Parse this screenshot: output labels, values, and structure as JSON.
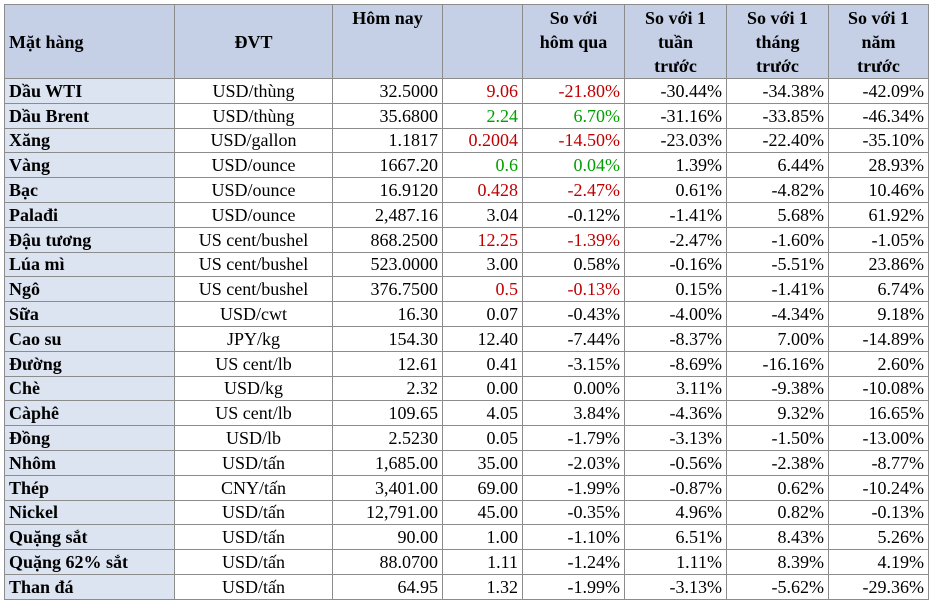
{
  "headers": {
    "item": "Mặt hàng",
    "unit": "ĐVT",
    "today": "Hôm nay",
    "change": "",
    "vs_yesterday": [
      "So với",
      "hôm qua"
    ],
    "vs_week": [
      "So với 1",
      "tuần",
      "trước"
    ],
    "vs_month": [
      "So với 1",
      "tháng",
      "trước"
    ],
    "vs_year": [
      "So với 1",
      "năm",
      "trước"
    ]
  },
  "colors": {
    "header_bg": "#c5d0e6",
    "name_bg": "#dde4f1",
    "red": "#c00000",
    "green": "#00a000"
  },
  "rows": [
    {
      "name": "Dầu WTI",
      "unit": "USD/thùng",
      "today": "32.5000",
      "change": "9.06",
      "day": "-21.80%",
      "week": "-30.44%",
      "month": "-34.38%",
      "year": "-42.09%",
      "change_color": "red",
      "day_color": "red"
    },
    {
      "name": "Dầu Brent",
      "unit": "USD/thùng",
      "today": "35.6800",
      "change": "2.24",
      "day": "6.70%",
      "week": "-31.16%",
      "month": "-33.85%",
      "year": "-46.34%",
      "change_color": "green",
      "day_color": "green"
    },
    {
      "name": "Xăng",
      "unit": "USD/gallon",
      "today": "1.1817",
      "change": "0.2004",
      "day": "-14.50%",
      "week": "-23.03%",
      "month": "-22.40%",
      "year": "-35.10%",
      "change_color": "red",
      "day_color": "red"
    },
    {
      "name": "Vàng",
      "unit": "USD/ounce",
      "today": "1667.20",
      "change": "0.6",
      "day": "0.04%",
      "week": "1.39%",
      "month": "6.44%",
      "year": "28.93%",
      "change_color": "green",
      "day_color": "green"
    },
    {
      "name": "Bạc",
      "unit": "USD/ounce",
      "today": "16.9120",
      "change": "0.428",
      "day": "-2.47%",
      "week": "0.61%",
      "month": "-4.82%",
      "year": "10.46%",
      "change_color": "red",
      "day_color": "red"
    },
    {
      "name": "Palađi",
      "unit": "USD/ounce",
      "today": "2,487.16",
      "change": "3.04",
      "day": "-0.12%",
      "week": "-1.41%",
      "month": "5.68%",
      "year": "61.92%",
      "change_color": "",
      "day_color": ""
    },
    {
      "name": "Đậu tương",
      "unit": "US cent/bushel",
      "today": "868.2500",
      "change": "12.25",
      "day": "-1.39%",
      "week": "-2.47%",
      "month": "-1.60%",
      "year": "-1.05%",
      "change_color": "red",
      "day_color": "red"
    },
    {
      "name": "Lúa mì",
      "unit": "US cent/bushel",
      "today": "523.0000",
      "change": "3.00",
      "day": "0.58%",
      "week": "-0.16%",
      "month": "-5.51%",
      "year": "23.86%",
      "change_color": "",
      "day_color": ""
    },
    {
      "name": "Ngô",
      "unit": "US cent/bushel",
      "today": "376.7500",
      "change": "0.5",
      "day": "-0.13%",
      "week": "0.15%",
      "month": "-1.41%",
      "year": "6.74%",
      "change_color": "red",
      "day_color": "red"
    },
    {
      "name": "Sữa",
      "unit": "USD/cwt",
      "today": "16.30",
      "change": "0.07",
      "day": "-0.43%",
      "week": "-4.00%",
      "month": "-4.34%",
      "year": "9.18%",
      "change_color": "",
      "day_color": ""
    },
    {
      "name": "Cao su",
      "unit": "JPY/kg",
      "today": "154.30",
      "change": "12.40",
      "day": "-7.44%",
      "week": "-8.37%",
      "month": "7.00%",
      "year": "-14.89%",
      "change_color": "",
      "day_color": ""
    },
    {
      "name": "Đường",
      "unit": "US cent/lb",
      "today": "12.61",
      "change": "0.41",
      "day": "-3.15%",
      "week": "-8.69%",
      "month": "-16.16%",
      "year": "2.60%",
      "change_color": "",
      "day_color": ""
    },
    {
      "name": "Chè",
      "unit": "USD/kg",
      "today": "2.32",
      "change": "0.00",
      "day": "0.00%",
      "week": "3.11%",
      "month": "-9.38%",
      "year": "-10.08%",
      "change_color": "",
      "day_color": ""
    },
    {
      "name": "Càphê",
      "unit": "US cent/lb",
      "today": "109.65",
      "change": "4.05",
      "day": "3.84%",
      "week": "-4.36%",
      "month": "9.32%",
      "year": "16.65%",
      "change_color": "",
      "day_color": ""
    },
    {
      "name": "Đồng",
      "unit": "USD/lb",
      "today": "2.5230",
      "change": "0.05",
      "day": "-1.79%",
      "week": "-3.13%",
      "month": "-1.50%",
      "year": "-13.00%",
      "change_color": "",
      "day_color": ""
    },
    {
      "name": "Nhôm",
      "unit": "USD/tấn",
      "today": "1,685.00",
      "change": "35.00",
      "day": "-2.03%",
      "week": "-0.56%",
      "month": "-2.38%",
      "year": "-8.77%",
      "change_color": "",
      "day_color": ""
    },
    {
      "name": "Thép",
      "unit": "CNY/tấn",
      "today": "3,401.00",
      "change": "69.00",
      "day": "-1.99%",
      "week": "-0.87%",
      "month": "0.62%",
      "year": "-10.24%",
      "change_color": "",
      "day_color": ""
    },
    {
      "name": "Nickel",
      "unit": "USD/tấn",
      "today": "12,791.00",
      "change": "45.00",
      "day": "-0.35%",
      "week": "4.96%",
      "month": "0.82%",
      "year": "-0.13%",
      "change_color": "",
      "day_color": ""
    },
    {
      "name": "Quặng sắt",
      "unit": "USD/tấn",
      "today": "90.00",
      "change": "1.00",
      "day": "-1.10%",
      "week": "6.51%",
      "month": "8.43%",
      "year": "5.26%",
      "change_color": "",
      "day_color": ""
    },
    {
      "name": "Quặng 62% sắt",
      "unit": "USD/tấn",
      "today": "88.0700",
      "change": "1.11",
      "day": "-1.24%",
      "week": "1.11%",
      "month": "8.39%",
      "year": "4.19%",
      "change_color": "",
      "day_color": ""
    },
    {
      "name": "Than đá",
      "unit": "USD/tấn",
      "today": "64.95",
      "change": "1.32",
      "day": "-1.99%",
      "week": "-3.13%",
      "month": "-5.62%",
      "year": "-29.36%",
      "change_color": "",
      "day_color": ""
    }
  ]
}
